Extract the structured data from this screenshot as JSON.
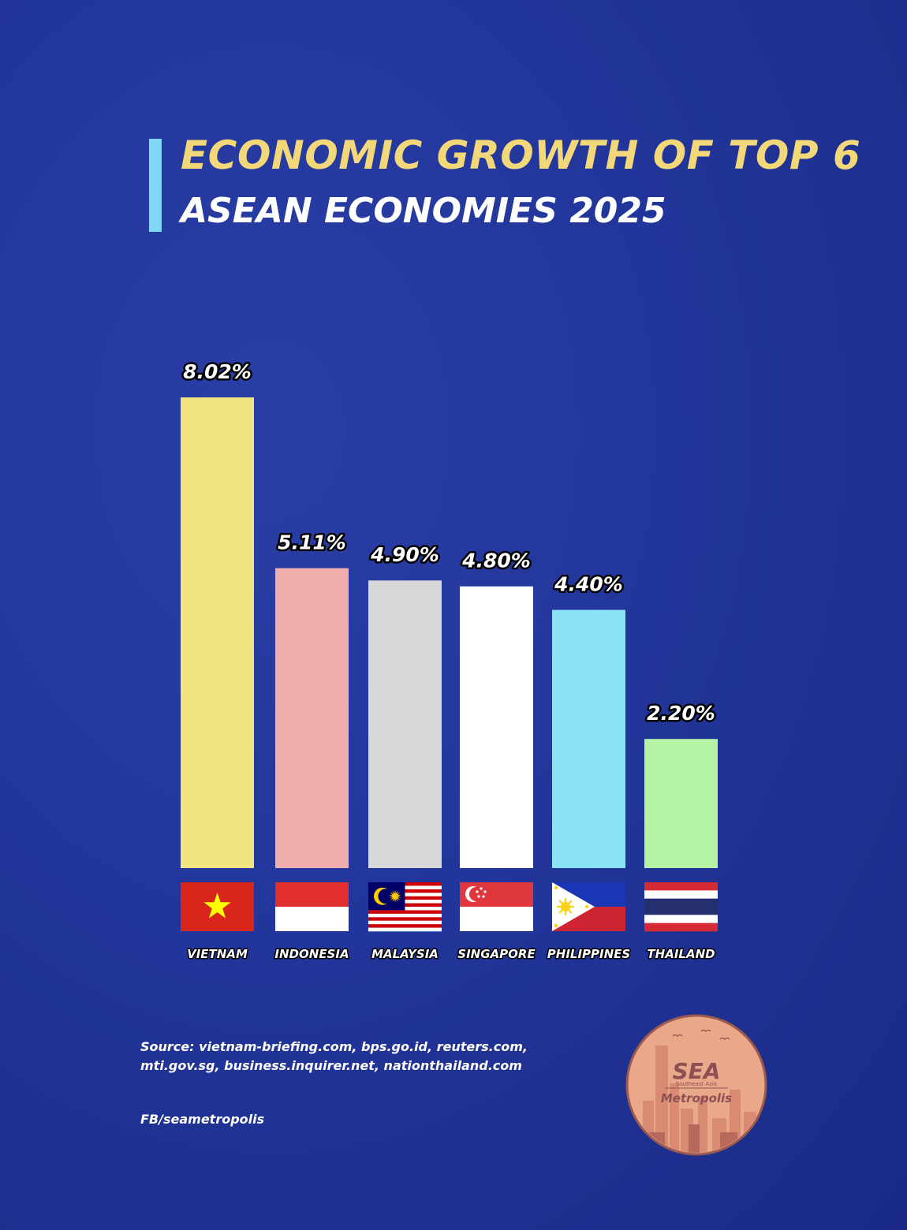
{
  "header": {
    "title_line1": "ECONOMIC GROWTH OF TOP 6",
    "title_line2": "ASEAN ECONOMIES 2025"
  },
  "colors": {
    "background": "#22359a",
    "title_accent": "#f3d879",
    "accent_bar": "#7fd8f6"
  },
  "chart_data": {
    "type": "bar",
    "title": "ECONOMIC GROWTH OF TOP 6 ASEAN ECONOMIES 2025",
    "categories": [
      "VIETNAM",
      "INDONESIA",
      "MALAYSIA",
      "SINGAPORE",
      "PHILIPPINES",
      "THAILAND"
    ],
    "values": [
      8.02,
      5.11,
      4.9,
      4.8,
      4.4,
      2.2
    ],
    "value_labels": [
      "8.02%",
      "5.11%",
      "4.90%",
      "4.80%",
      "4.40%",
      "2.20%"
    ],
    "bar_colors": [
      "#f2e383",
      "#f0adad",
      "#d8d8d8",
      "#ffffff",
      "#8ce3f6",
      "#b4f4a4"
    ],
    "flags": [
      "vietnam-flag-icon",
      "indonesia-flag-icon",
      "malaysia-flag-icon",
      "singapore-flag-icon",
      "philippines-flag-icon",
      "thailand-flag-icon"
    ],
    "ylim": [
      0,
      8.02
    ],
    "xlabel": "",
    "ylabel": "",
    "grid": false,
    "legend": "none"
  },
  "footer": {
    "source": "Source: vietnam-briefing.com, bps.go.id, reuters.com, mti.gov.sg, business.inquirer.net, nationthailand.com",
    "handle": "FB/seametropolis"
  },
  "logo": {
    "main": "SEA",
    "sub": "Southeast Asia",
    "name": "Metropolis",
    "icon": "sea-metropolis-logo-icon"
  }
}
